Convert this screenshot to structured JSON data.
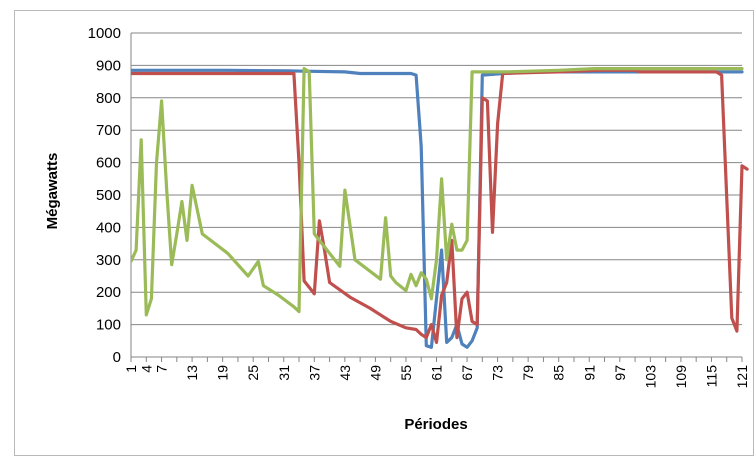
{
  "chart_data": {
    "type": "line",
    "title": "",
    "xlabel": "Périodes",
    "ylabel": "Mégawatts",
    "xlim": [
      1,
      121
    ],
    "ylim": [
      0,
      1000
    ],
    "yticks": [
      0,
      100,
      200,
      300,
      400,
      500,
      600,
      700,
      800,
      900,
      1000
    ],
    "xtick_labels": [
      "1",
      "7",
      "13",
      "19",
      "25",
      "31",
      "37",
      "43",
      "49",
      "55",
      "61",
      "67",
      "73",
      "79",
      "85",
      "91",
      "97",
      "103",
      "109",
      "115",
      "121"
    ],
    "xtick_labels_minor": [
      "4"
    ],
    "grid": "horizontal",
    "legend": "none",
    "series": [
      {
        "color": "#4f81bd",
        "points": [
          [
            1,
            885
          ],
          [
            20,
            885
          ],
          [
            32,
            883
          ],
          [
            35,
            882
          ],
          [
            43,
            880
          ],
          [
            46,
            875
          ],
          [
            56,
            875
          ],
          [
            57,
            870
          ],
          [
            58,
            650
          ],
          [
            59,
            35
          ],
          [
            60,
            30
          ],
          [
            62,
            330
          ],
          [
            63,
            45
          ],
          [
            64,
            60
          ],
          [
            65,
            100
          ],
          [
            66,
            40
          ],
          [
            67,
            30
          ],
          [
            68,
            50
          ],
          [
            69,
            90
          ],
          [
            70,
            870
          ],
          [
            74,
            875
          ],
          [
            80,
            880
          ],
          [
            90,
            880
          ],
          [
            121,
            880
          ]
        ]
      },
      {
        "color": "#c0504d",
        "points": [
          [
            1,
            875
          ],
          [
            20,
            875
          ],
          [
            33,
            875
          ],
          [
            34,
            600
          ],
          [
            35,
            235
          ],
          [
            37,
            195
          ],
          [
            38,
            420
          ],
          [
            39,
            330
          ],
          [
            40,
            230
          ],
          [
            44,
            185
          ],
          [
            48,
            150
          ],
          [
            52,
            110
          ],
          [
            55,
            90
          ],
          [
            57,
            85
          ],
          [
            58,
            70
          ],
          [
            59,
            60
          ],
          [
            60,
            100
          ],
          [
            61,
            45
          ],
          [
            62,
            190
          ],
          [
            63,
            230
          ],
          [
            64,
            360
          ],
          [
            65,
            60
          ],
          [
            66,
            180
          ],
          [
            67,
            200
          ],
          [
            68,
            110
          ],
          [
            69,
            100
          ],
          [
            70,
            800
          ],
          [
            71,
            790
          ],
          [
            72,
            385
          ],
          [
            73,
            720
          ],
          [
            74,
            875
          ],
          [
            80,
            878
          ],
          [
            85,
            880
          ],
          [
            93,
            885
          ],
          [
            100,
            885
          ],
          [
            101,
            880
          ],
          [
            116,
            880
          ],
          [
            117,
            870
          ],
          [
            119,
            120
          ],
          [
            120,
            80
          ],
          [
            121,
            590
          ],
          [
            122,
            580
          ]
        ]
      },
      {
        "color": "#9bbb59",
        "points": [
          [
            1,
            295
          ],
          [
            2,
            330
          ],
          [
            3,
            670
          ],
          [
            4,
            130
          ],
          [
            5,
            180
          ],
          [
            6,
            600
          ],
          [
            7,
            790
          ],
          [
            8,
            520
          ],
          [
            9,
            285
          ],
          [
            10,
            380
          ],
          [
            11,
            480
          ],
          [
            12,
            360
          ],
          [
            13,
            530
          ],
          [
            15,
            380
          ],
          [
            20,
            320
          ],
          [
            24,
            250
          ],
          [
            26,
            295
          ],
          [
            27,
            220
          ],
          [
            30,
            190
          ],
          [
            33,
            155
          ],
          [
            34,
            140
          ],
          [
            35,
            890
          ],
          [
            36,
            880
          ],
          [
            37,
            380
          ],
          [
            42,
            280
          ],
          [
            43,
            515
          ],
          [
            45,
            300
          ],
          [
            50,
            240
          ],
          [
            51,
            430
          ],
          [
            52,
            250
          ],
          [
            53,
            230
          ],
          [
            55,
            205
          ],
          [
            56,
            255
          ],
          [
            57,
            220
          ],
          [
            58,
            260
          ],
          [
            59,
            240
          ],
          [
            60,
            180
          ],
          [
            61,
            300
          ],
          [
            62,
            550
          ],
          [
            63,
            300
          ],
          [
            64,
            410
          ],
          [
            65,
            330
          ],
          [
            66,
            330
          ],
          [
            67,
            360
          ],
          [
            68,
            880
          ],
          [
            75,
            880
          ],
          [
            85,
            885
          ],
          [
            92,
            890
          ],
          [
            121,
            890
          ]
        ]
      }
    ]
  }
}
